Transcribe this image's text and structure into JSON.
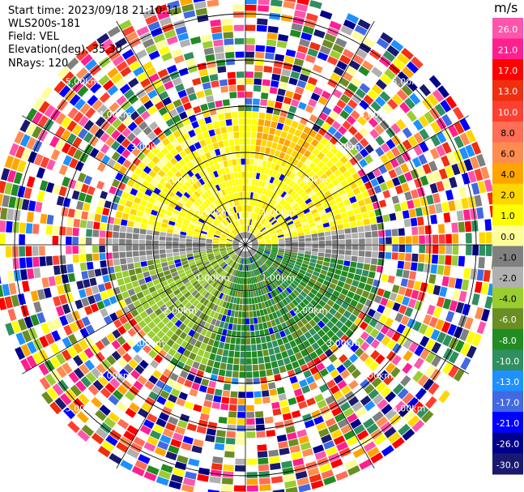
{
  "header": {
    "start_time": "Start time: 2023/09/18 21:10:11",
    "instrument": "WLS200s-181",
    "field": "Field: VEL",
    "elevation": "Elevation(deg): 35.30",
    "nrays": "NRays: 120"
  },
  "chart_data": {
    "type": "heatmap",
    "projection": "polar PPI (plan position indicator)",
    "field": "VEL",
    "units": "m/s",
    "n_rays": 120,
    "elevation_deg": 35.3,
    "range_rings_km": [
      1.0,
      2.0,
      3.0,
      4.0,
      5.0
    ],
    "ring_labels": [
      "1.00km",
      "2.00km",
      "3.00km",
      "4.00km",
      "5.00km"
    ],
    "spokes_deg": [
      0,
      30,
      60,
      90,
      120,
      150,
      180,
      210,
      240,
      270,
      300,
      330
    ],
    "max_range_km": 5.5,
    "colorbar": {
      "title": "m/s",
      "ticks": [
        "26.0",
        "21.0",
        "17.0",
        "13.0",
        "10.0",
        "8.0",
        "6.0",
        "4.0",
        "2.0",
        "1.0",
        "0.0",
        "-1.0",
        "-2.0",
        "-4.0",
        "-6.0",
        "-8.0",
        "-10.0",
        "-13.0",
        "-17.0",
        "-21.0",
        "-26.0",
        "-30.0"
      ],
      "colors": [
        "#ff55ab",
        "#ff1f8f",
        "#ff0000",
        "#f02e10",
        "#ff4030",
        "#ff6e55",
        "#ff8c50",
        "#ffa500",
        "#ffd700",
        "#ffff00",
        "#ffff99",
        "#808080",
        "#b0b0b0",
        "#9acd32",
        "#6b8e23",
        "#228b22",
        "#2f8f5f",
        "#1e90ff",
        "#4169e1",
        "#0000ff",
        "#00008b",
        "#191970"
      ]
    },
    "pattern": {
      "inner_approaching_sector": "south (green, negative velocities)",
      "inner_receding_sector": "north (yellow/orange, positive velocities)",
      "zero_band": "west-east line (grey)",
      "beyond_km": 3.0,
      "beyond_description": "noise (random colors)"
    }
  }
}
